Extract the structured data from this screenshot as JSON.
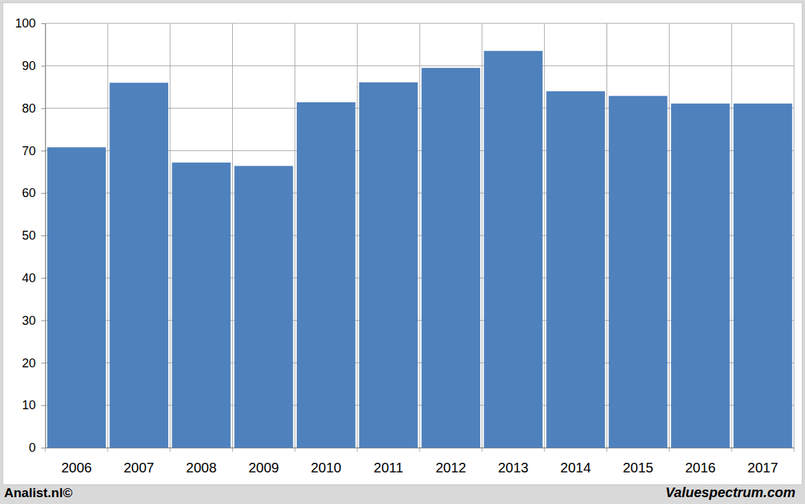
{
  "chart_data": {
    "type": "bar",
    "categories": [
      "2006",
      "2007",
      "2008",
      "2009",
      "2010",
      "2011",
      "2012",
      "2013",
      "2014",
      "2015",
      "2016",
      "2017"
    ],
    "values": [
      70.8,
      86,
      67.2,
      66.4,
      81.4,
      86.1,
      89.5,
      93.5,
      84,
      82.9,
      81.1,
      81.1
    ],
    "color": "#4f81bd",
    "ylim": [
      0,
      100
    ],
    "yticks": [
      0,
      10,
      20,
      30,
      40,
      50,
      60,
      70,
      80,
      90,
      100
    ],
    "grid": true,
    "annotations": [
      "Analist.nl©",
      "Valuespectrum.com"
    ]
  }
}
